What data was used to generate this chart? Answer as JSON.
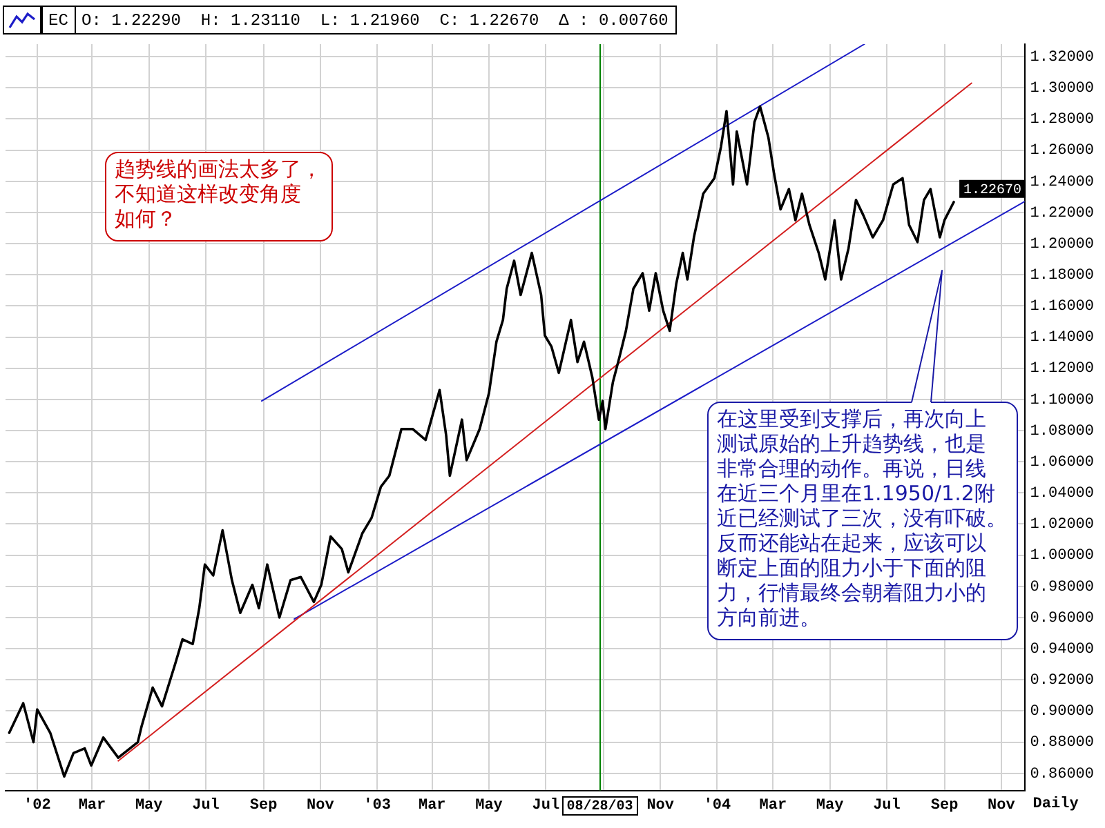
{
  "chart_data": {
    "type": "line",
    "title": "EC",
    "subtitle": "O: 1.22290  H: 1.23110  L: 1.21960  C: 1.22670  Δ : 0.00760",
    "xlabel": "Daily",
    "annotations": [
      "趋势线的画法太多了，不知道这样改变角度如何？",
      "在这里受到支撑后，再次向上测试原始的上升趋势线，也是非常合理的动作。再说，日线在近三个月里在1.1950/1.2附近已经测试了三次，没有吓破。反而还能站在起来，应该可以断定上面的阻力小于下面的阻力，行情最终会朝着阻力小的方向前进。"
    ],
    "series": [
      {
        "color": "#000000",
        "x": [
          "2001-12-02",
          "2001-12-17",
          "2001-12-28",
          "2002-01-01",
          "2002-01-15",
          "2002-01-30",
          "2002-02-09",
          "2002-02-21",
          "2002-02-28",
          "2002-03-13",
          "2002-03-29",
          "2002-04-19",
          "2002-04-23",
          "2002-05-05",
          "2002-05-15",
          "2002-05-29",
          "2002-06-06",
          "2002-06-17",
          "2002-06-24",
          "2002-06-30",
          "2002-07-09",
          "2002-07-19",
          "2002-07-29",
          "2002-08-07",
          "2002-08-20",
          "2002-08-27",
          "2002-09-05",
          "2002-09-18",
          "2002-09-30",
          "2002-10-11",
          "2002-10-25",
          "2002-11-02",
          "2002-11-12",
          "2002-11-24",
          "2002-12-01",
          "2002-12-16",
          "2002-12-26",
          "2003-01-05",
          "2003-01-14",
          "2003-01-27",
          "2003-02-08",
          "2003-02-22",
          "2003-03-09",
          "2003-03-16",
          "2003-03-20",
          "2003-04-02",
          "2003-04-07",
          "2003-04-21",
          "2003-05-01",
          "2003-05-09",
          "2003-05-16",
          "2003-05-20",
          "2003-05-28",
          "2003-06-04",
          "2003-06-16",
          "2003-06-26",
          "2003-06-30",
          "2003-07-07",
          "2003-07-15",
          "2003-07-28",
          "2003-08-04",
          "2003-08-11",
          "2003-08-20",
          "2003-08-27",
          "2003-08-31",
          "2003-09-03",
          "2003-09-11",
          "2003-09-18",
          "2003-09-25",
          "2003-10-03",
          "2003-10-13",
          "2003-10-20",
          "2003-10-27",
          "2003-11-04",
          "2003-11-11",
          "2003-11-18",
          "2003-11-25",
          "2003-11-30",
          "2003-12-07",
          "2003-12-17",
          "2003-12-29",
          "2004-01-05",
          "2004-01-11",
          "2004-01-18",
          "2004-01-22",
          "2004-02-02",
          "2004-02-10",
          "2004-02-16",
          "2004-02-25",
          "2004-03-02",
          "2004-03-09",
          "2004-03-18",
          "2004-03-25",
          "2004-04-01",
          "2004-04-09",
          "2004-04-19",
          "2004-04-26",
          "2004-05-06",
          "2004-05-13",
          "2004-05-21",
          "2004-05-29",
          "2004-06-06",
          "2004-06-16",
          "2004-06-27",
          "2004-07-08",
          "2004-07-18",
          "2004-07-25",
          "2004-08-03",
          "2004-08-10",
          "2004-08-17",
          "2004-08-27",
          "2004-09-01",
          "2004-09-11"
        ],
        "values": [
          0.886,
          0.905,
          0.88,
          0.901,
          0.886,
          0.858,
          0.873,
          0.876,
          0.865,
          0.883,
          0.87,
          0.88,
          0.89,
          0.915,
          0.903,
          0.93,
          0.946,
          0.943,
          0.966,
          0.994,
          0.987,
          1.016,
          0.984,
          0.963,
          0.981,
          0.966,
          0.994,
          0.96,
          0.984,
          0.986,
          0.97,
          0.981,
          1.012,
          1.004,
          0.989,
          1.014,
          1.024,
          1.044,
          1.051,
          1.081,
          1.081,
          1.074,
          1.106,
          1.077,
          1.051,
          1.087,
          1.061,
          1.081,
          1.104,
          1.137,
          1.151,
          1.171,
          1.189,
          1.167,
          1.194,
          1.167,
          1.141,
          1.134,
          1.117,
          1.151,
          1.124,
          1.137,
          1.114,
          1.087,
          1.099,
          1.081,
          1.111,
          1.127,
          1.144,
          1.171,
          1.181,
          1.157,
          1.181,
          1.157,
          1.144,
          1.174,
          1.194,
          1.177,
          1.204,
          1.232,
          1.242,
          1.262,
          1.285,
          1.238,
          1.272,
          1.238,
          1.278,
          1.288,
          1.268,
          1.245,
          1.222,
          1.235,
          1.215,
          1.232,
          1.212,
          1.194,
          1.177,
          1.215,
          1.177,
          1.197,
          1.228,
          1.218,
          1.204,
          1.215,
          1.238,
          1.242,
          1.212,
          1.201,
          1.228,
          1.235,
          1.204,
          1.215,
          1.2267
        ],
        "value_labels": [
          null,
          null,
          null,
          null,
          null,
          null,
          null,
          null,
          null,
          null,
          null,
          null,
          null,
          null,
          null,
          null,
          null,
          null,
          null,
          null,
          null,
          null,
          null,
          null,
          null,
          null,
          null,
          null,
          null,
          null,
          null,
          null,
          null,
          null,
          null,
          null,
          null,
          null,
          null,
          null,
          null,
          null,
          null,
          null,
          null,
          null,
          null,
          null,
          null,
          null,
          null,
          null,
          null,
          null,
          null,
          null,
          null,
          null,
          null,
          null,
          null,
          null,
          null,
          null,
          null,
          null,
          null,
          null,
          null,
          null,
          null,
          null,
          null,
          null,
          null,
          null,
          null,
          null,
          null,
          null,
          null,
          null,
          null,
          null,
          null,
          null,
          null,
          null,
          null,
          null,
          null,
          null,
          null,
          null,
          null,
          null,
          null,
          null,
          null,
          null,
          null,
          null,
          null,
          null,
          null,
          null,
          null,
          null,
          null,
          null,
          null,
          null,
          "1.22670"
        ]
      },
      {
        "color": "#1c1cc8",
        "x": [
          "2002-08-30",
          "2004-06-07"
        ],
        "values": [
          1.099,
          1.328
        ]
      },
      {
        "color": "#d42020",
        "x": [
          "2002-03-29",
          "2004-09-30"
        ],
        "values": [
          0.868,
          1.303
        ]
      },
      {
        "color": "#1c1cc8",
        "x": [
          "2002-10-04",
          "2004-11-26"
        ],
        "values": [
          0.959,
          1.227
        ]
      }
    ],
    "xlim": [
      "2001-11-28",
      "2004-11-26"
    ],
    "xticks": [
      {
        "value": "2002-01",
        "label": "'02"
      },
      {
        "value": "2002-03",
        "label": "Mar"
      },
      {
        "value": "2002-05",
        "label": "May"
      },
      {
        "value": "2002-07",
        "label": "Jul"
      },
      {
        "value": "2002-09",
        "label": "Sep"
      },
      {
        "value": "2002-11",
        "label": "Nov"
      },
      {
        "value": "2003-01",
        "label": "'03"
      },
      {
        "value": "2003-03",
        "label": "Mar"
      },
      {
        "value": "2003-05",
        "label": "May"
      },
      {
        "value": "2003-07",
        "label": "Jul"
      },
      {
        "value": "2003-09",
        "label": null
      },
      {
        "value": "2003-11",
        "label": "Nov"
      },
      {
        "value": "2004-01",
        "label": "'04"
      },
      {
        "value": "2004-03",
        "label": "Mar"
      },
      {
        "value": "2004-05",
        "label": "May"
      },
      {
        "value": "2004-07",
        "label": "Jul"
      },
      {
        "value": "2004-09",
        "label": "Sep"
      },
      {
        "value": "2004-11",
        "label": "Nov"
      }
    ],
    "ylim": [
      0.849,
      1.328
    ],
    "yticks": [
      {
        "value": 0.86,
        "label": "0.86000"
      },
      {
        "value": 0.88,
        "label": "0.88000"
      },
      {
        "value": 0.9,
        "label": "0.90000"
      },
      {
        "value": 0.92,
        "label": "0.92000"
      },
      {
        "value": 0.94,
        "label": "0.94000"
      },
      {
        "value": 0.96,
        "label": "0.96000"
      },
      {
        "value": 0.98,
        "label": "0.98000"
      },
      {
        "value": 1.0,
        "label": "1.00000"
      },
      {
        "value": 1.02,
        "label": "1.02000"
      },
      {
        "value": 1.04,
        "label": "1.04000"
      },
      {
        "value": 1.06,
        "label": "1.06000"
      },
      {
        "value": 1.08,
        "label": "1.08000"
      },
      {
        "value": 1.1,
        "label": "1.10000"
      },
      {
        "value": 1.12,
        "label": "1.12000"
      },
      {
        "value": 1.14,
        "label": "1.14000"
      },
      {
        "value": 1.16,
        "label": "1.16000"
      },
      {
        "value": 1.18,
        "label": "1.18000"
      },
      {
        "value": 1.2,
        "label": "1.20000"
      },
      {
        "value": 1.22,
        "label": "1.22000"
      },
      {
        "value": 1.24,
        "label": "1.24000"
      },
      {
        "value": 1.26,
        "label": "1.26000"
      },
      {
        "value": 1.28,
        "label": "1.28000"
      },
      {
        "value": 1.3,
        "label": "1.30000"
      },
      {
        "value": 1.32,
        "label": "1.32000"
      }
    ],
    "ref_lines": [
      {
        "axis": "x",
        "value": "2003-08-28",
        "label": "08/28/03",
        "color": "#008000"
      }
    ],
    "grid": true
  }
}
